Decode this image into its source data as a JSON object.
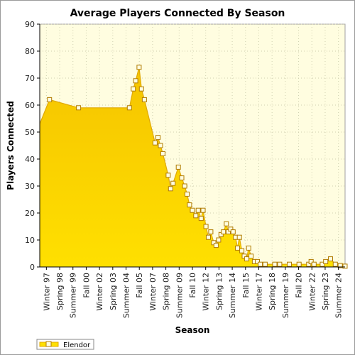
{
  "chart_data": {
    "type": "area",
    "title": "Average Players Connected By Season",
    "xlabel": "Season",
    "ylabel": "Players Connected",
    "ylim": [
      0,
      90
    ],
    "yticks": [
      0,
      10,
      20,
      30,
      40,
      50,
      60,
      70,
      80,
      90
    ],
    "xticks": [
      "Winter 97",
      "Spring 98",
      "Summer 99",
      "Fall 00",
      "Winter 02",
      "Spring 03",
      "Summer 04",
      "Fall 05",
      "Winter 07",
      "Spring 08",
      "Summer 09",
      "Fall 10",
      "Winter 12",
      "Spring 13",
      "Summer 14",
      "Fall 15",
      "Winter 17",
      "Spring 18",
      "Summer 19",
      "Fall 20",
      "Winter 22",
      "Spring 23",
      "Summer 24"
    ],
    "grid": true,
    "legend_position": "bottom-left",
    "colors": {
      "fill": "#ffe000",
      "fill_dark": "#f5c400",
      "line": "#e0a800",
      "marker_edge": "#b07a00",
      "plot_bg": "#fffde0",
      "grid": "#d0d0b0"
    },
    "series": [
      {
        "name": "Elendor",
        "points": [
          [
            0,
            53
          ],
          [
            2.0,
            62
          ],
          [
            8.0,
            59
          ],
          [
            18.5,
            59
          ],
          [
            19.3,
            66
          ],
          [
            19.8,
            69
          ],
          [
            20.5,
            74
          ],
          [
            21.0,
            66
          ],
          [
            21.6,
            62
          ],
          [
            23.8,
            46
          ],
          [
            24.4,
            48
          ],
          [
            24.9,
            45
          ],
          [
            25.4,
            42
          ],
          [
            26.5,
            34
          ],
          [
            27.0,
            29
          ],
          [
            27.5,
            31
          ],
          [
            28.6,
            37
          ],
          [
            29.3,
            33
          ],
          [
            29.9,
            30
          ],
          [
            30.4,
            27
          ],
          [
            30.9,
            23
          ],
          [
            31.5,
            21
          ],
          [
            32.2,
            19
          ],
          [
            32.7,
            21
          ],
          [
            33.3,
            18
          ],
          [
            33.7,
            21
          ],
          [
            34.3,
            15
          ],
          [
            34.8,
            11
          ],
          [
            35.3,
            13
          ],
          [
            35.9,
            9
          ],
          [
            36.4,
            8
          ],
          [
            36.9,
            10
          ],
          [
            37.4,
            12
          ],
          [
            37.9,
            13
          ],
          [
            38.5,
            16
          ],
          [
            38.9,
            13
          ],
          [
            39.4,
            14
          ],
          [
            39.9,
            13
          ],
          [
            40.4,
            11
          ],
          [
            40.8,
            7
          ],
          [
            41.2,
            11
          ],
          [
            41.7,
            6
          ],
          [
            42.2,
            4
          ],
          [
            42.7,
            3
          ],
          [
            43.1,
            7
          ],
          [
            43.6,
            4
          ],
          [
            44.3,
            2
          ],
          [
            44.9,
            2
          ],
          [
            45.5,
            1
          ],
          [
            46.5,
            1
          ],
          [
            48.5,
            1
          ],
          [
            49.5,
            1
          ],
          [
            51.5,
            1
          ],
          [
            53.5,
            1
          ],
          [
            55.5,
            1
          ],
          [
            56.0,
            2
          ],
          [
            56.6,
            1
          ],
          [
            58.3,
            1
          ],
          [
            59.0,
            2
          ],
          [
            60.0,
            3
          ],
          [
            61.0,
            1
          ],
          [
            62.0,
            0.5
          ],
          [
            63.0,
            0.3
          ]
        ]
      }
    ]
  }
}
